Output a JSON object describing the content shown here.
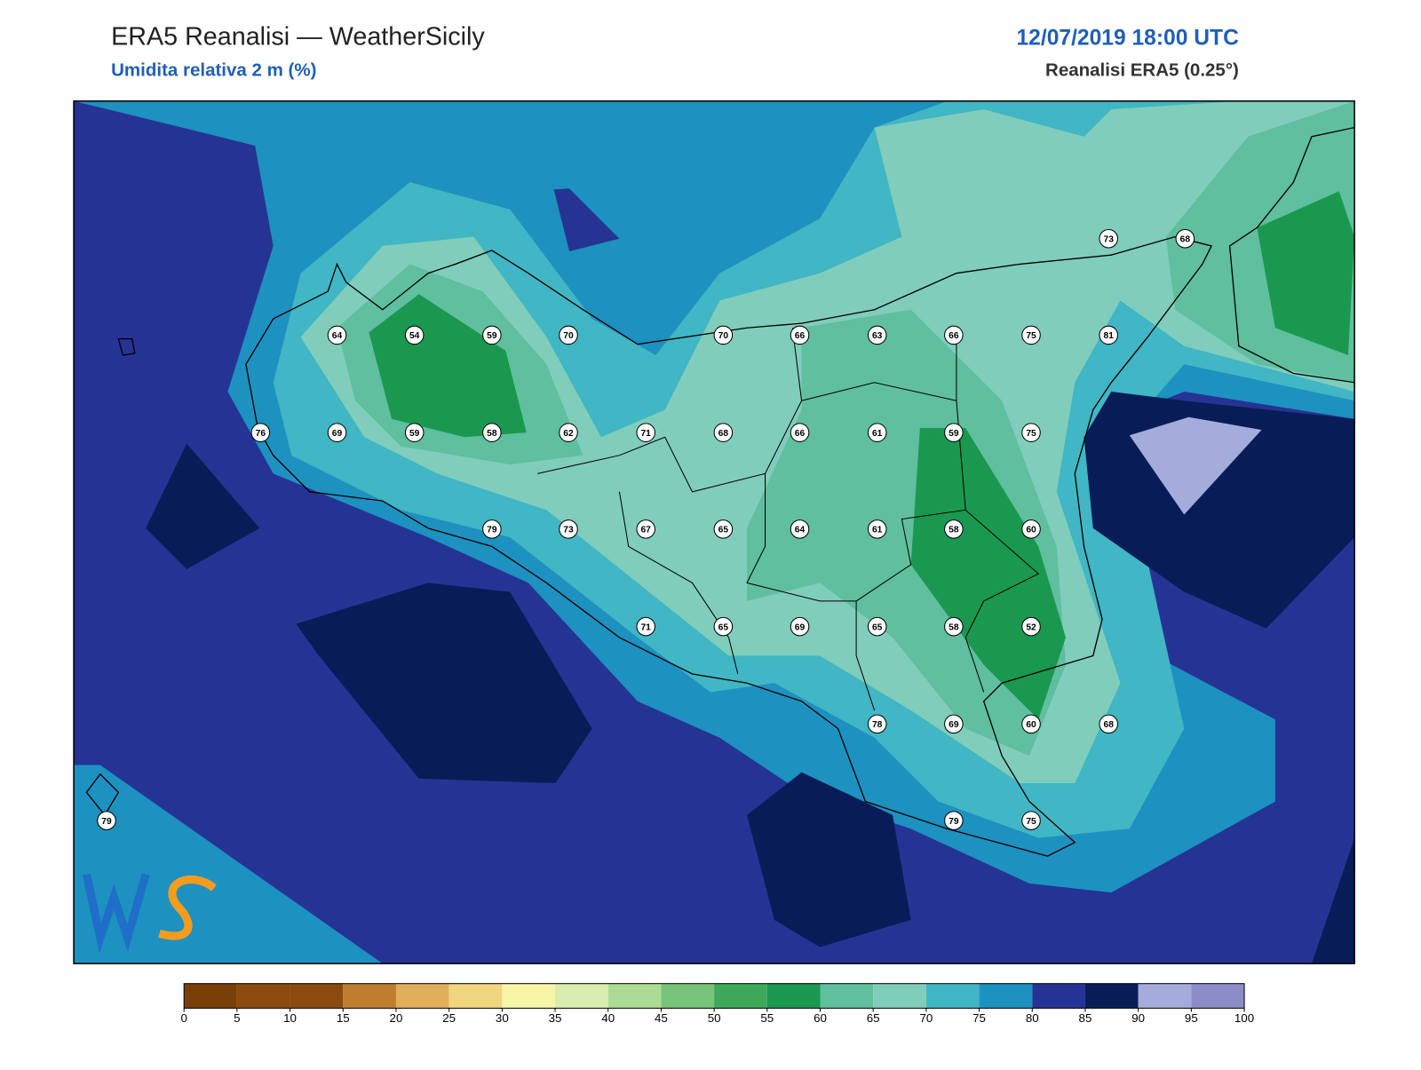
{
  "header": {
    "title": "ERA5 Reanalisi — WeatherSicily",
    "subtitle": "Umidita relativa 2 m (%)",
    "datetime": "12/07/2019 18:00 UTC",
    "source": "Reanalisi ERA5 (0.25°)"
  },
  "map": {
    "stations": [
      64,
      54,
      59,
      70,
      70,
      66,
      63,
      66,
      75,
      81,
      73,
      68,
      76,
      69,
      59,
      58,
      62,
      71,
      68,
      66,
      61,
      59,
      75,
      79,
      73,
      67,
      65,
      64,
      61,
      58,
      60,
      71,
      65,
      69,
      65,
      58,
      52,
      78,
      69,
      60,
      68,
      79,
      79,
      75
    ]
  },
  "colorbar": {
    "ticks": [
      0,
      5,
      10,
      15,
      20,
      25,
      30,
      35,
      40,
      45,
      50,
      55,
      60,
      65,
      70,
      75,
      80,
      85,
      90,
      95,
      100
    ],
    "colors": [
      "#7a3f08",
      "#8c4a0e",
      "#8c4a0e",
      "#bf7d2f",
      "#dfaf5c",
      "#f0d67e",
      "#f6f5a8",
      "#d9eeae",
      "#acdc93",
      "#78c47a",
      "#3ea85a",
      "#1a9850",
      "#5fbf9f",
      "#80cdbb",
      "#41b6c4",
      "#1d91c0",
      "#253494",
      "#081d58",
      "#a3acdb",
      "#8b8cc8"
    ]
  }
}
